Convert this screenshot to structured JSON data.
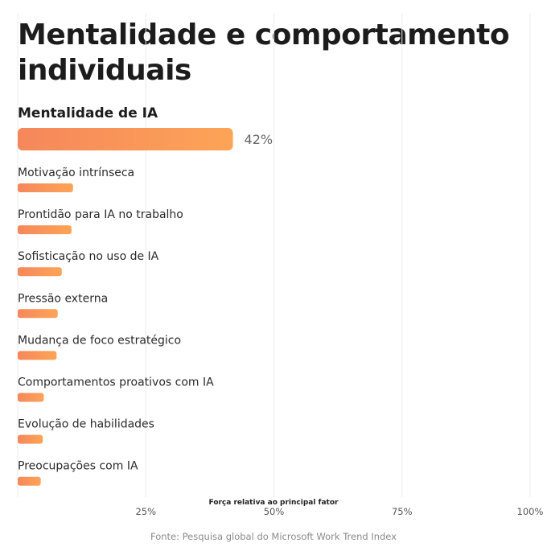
{
  "title": "Mentalidade e comportamento individuais",
  "source": "Fonte: Pesquisa global do Microsoft Work Trend Index",
  "colors": {
    "bar_start": "#f6875b",
    "bar_end": "#fda457",
    "grid": "#ececec"
  },
  "chart_data": {
    "type": "bar",
    "orientation": "horizontal",
    "xlabel": "Força relativa ao principal fator",
    "xlim": [
      0,
      100
    ],
    "xticks": [
      "25%",
      "50%",
      "75%",
      "100%"
    ],
    "xtick_values": [
      25,
      50,
      75,
      100
    ],
    "grid": true,
    "categories": [
      "Mentalidade de IA",
      "Motivação intrínseca",
      "Prontidão para IA no trabalho",
      "Sofisticação no uso de IA",
      "Pressão externa",
      "Mudança de foco estratégico",
      "Comportamentos proativos com IA",
      "Evolução de habilidades",
      "Preocupações com IA"
    ],
    "values": [
      42,
      10.8,
      10.5,
      8.6,
      7.8,
      7.6,
      5.1,
      4.9,
      4.5
    ],
    "data_labels": [
      "42%",
      "",
      "",
      "",
      "",
      "",
      "",
      "",
      ""
    ]
  }
}
